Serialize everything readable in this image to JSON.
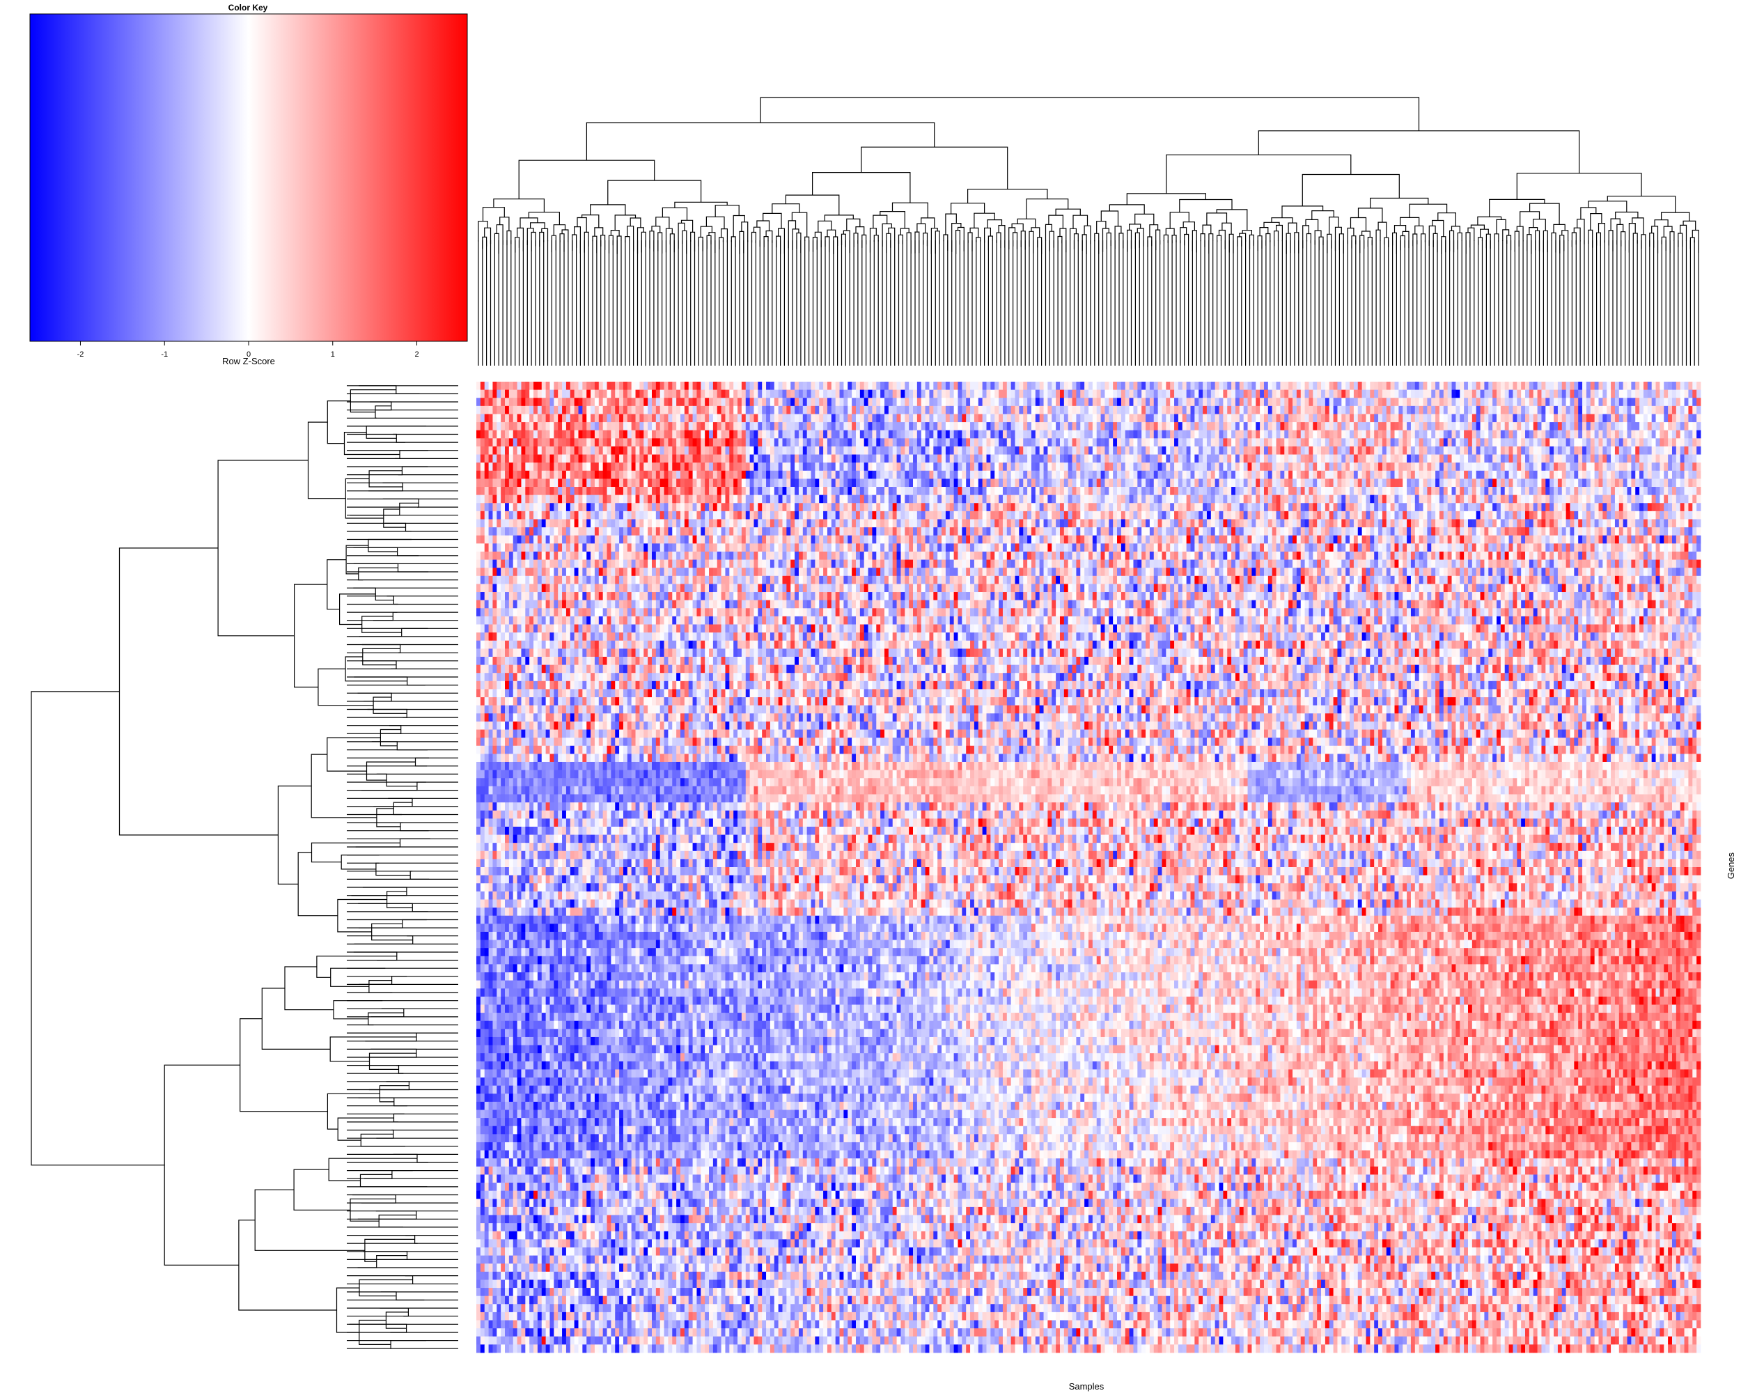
{
  "chart_data": [
    {
      "type": "heatmap",
      "title": "",
      "xlabel": "Samples",
      "ylabel": "Genes",
      "colormap": {
        "low": "#0000ff",
        "mid": "#ffffff",
        "high": "#ff0000"
      },
      "row_dendrogram": true,
      "column_dendrogram": true,
      "scaled_by": "row",
      "n_rows": 120,
      "n_cols": 300,
      "row_blocks": [
        {
          "rows": [
            0,
            15
          ],
          "pattern": "noisy; red in left sample cluster, blue in middle clusters"
        },
        {
          "rows": [
            15,
            47
          ],
          "pattern": "mixed red/blue noise"
        },
        {
          "rows": [
            47,
            52
          ],
          "pattern": "blue on left samples, light red in middle and right"
        },
        {
          "rows": [
            52,
            66
          ],
          "pattern": "mixed, red streaks mid-right"
        },
        {
          "rows": [
            66,
            96
          ],
          "pattern": "strong gradient: blue on left samples to red on right samples"
        },
        {
          "rows": [
            96,
            120
          ],
          "pattern": "mixed, red on right samples"
        }
      ]
    },
    {
      "type": "histogram-colorbar",
      "title": "Color Key",
      "xlabel": "Row Z-Score",
      "ticks": [
        "-2",
        "-1",
        "0",
        "1",
        "2"
      ],
      "tick_values": [
        -2,
        -1,
        0,
        1,
        2
      ],
      "range": [
        -2.6,
        2.6
      ]
    }
  ]
}
